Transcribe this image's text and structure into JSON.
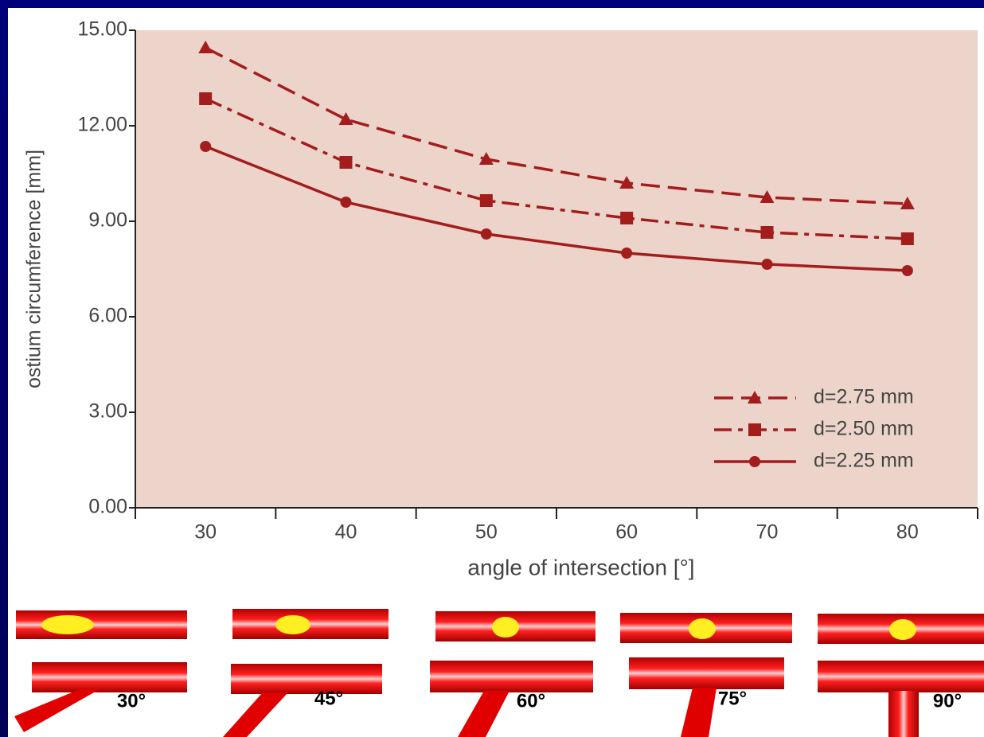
{
  "chart_data": {
    "type": "line",
    "y_label": "ostium circumference [mm]",
    "x_label": "angle of intersection [°]",
    "categories": [
      "30",
      "40",
      "50",
      "60",
      "70",
      "80"
    ],
    "series": [
      {
        "name": "d=2.75 mm",
        "color": "#a31d1d",
        "style": "dashed",
        "marker": "triangle",
        "values": [
          14.45,
          12.2,
          10.95,
          10.2,
          9.75,
          9.55
        ]
      },
      {
        "name": "d=2.50 mm",
        "color": "#a31d1d",
        "style": "dashdot",
        "marker": "square",
        "values": [
          12.85,
          10.85,
          9.65,
          9.1,
          8.65,
          8.45
        ]
      },
      {
        "name": "d=2.25 mm",
        "color": "#a31d1d",
        "style": "solid",
        "marker": "circle",
        "values": [
          11.35,
          9.6,
          8.6,
          8.0,
          7.65,
          7.45
        ]
      }
    ],
    "ylim": [
      0,
      15
    ],
    "yticks": [
      {
        "value": 0,
        "label": "0.00"
      },
      {
        "value": 3,
        "label": "3.00"
      },
      {
        "value": 6,
        "label": "6.00"
      },
      {
        "value": 9,
        "label": "9.00"
      },
      {
        "value": 12,
        "label": "12.00"
      },
      {
        "value": 15,
        "label": "15.00"
      }
    ],
    "legend": "lower right",
    "plot_background": "#ecd4ca"
  },
  "illustration_labels": [
    "30°",
    "45°",
    "60°",
    "75°",
    "90°"
  ]
}
